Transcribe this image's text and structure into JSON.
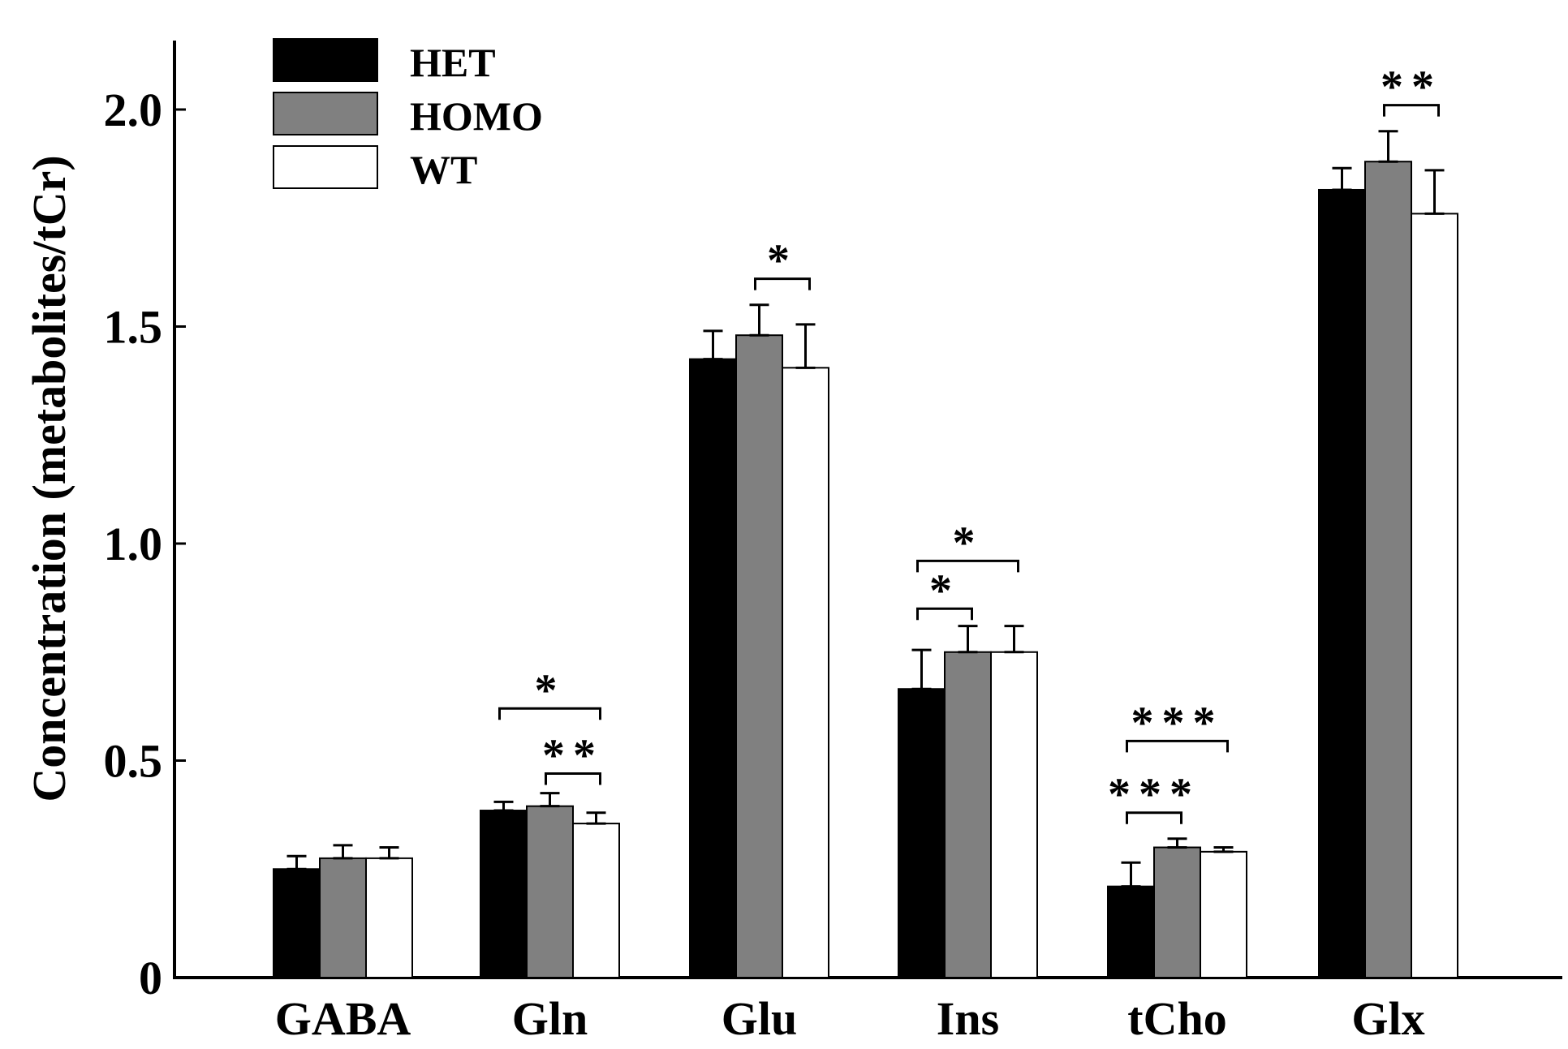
{
  "chart_data": {
    "type": "bar",
    "title": "",
    "xlabel": "",
    "ylabel": "Concentration (metabolites/tCr)",
    "ylim": [
      0,
      2.2
    ],
    "yticks": [
      0,
      0.5,
      1.0,
      1.5,
      2.0
    ],
    "ytick_labels": [
      "0",
      "0.5",
      "1.0",
      "1.5",
      "2.0"
    ],
    "categories": [
      "GABA",
      "Gln",
      "Glu",
      "Ins",
      "tCho",
      "Glx"
    ],
    "legend": {
      "position": "top-left",
      "entries": [
        "HET",
        "HOMO",
        "WT"
      ]
    },
    "series": [
      {
        "name": "HET",
        "color": "#000000",
        "values": [
          0.25,
          0.385,
          1.425,
          0.665,
          0.21,
          1.815
        ],
        "errors": [
          0.03,
          0.02,
          0.065,
          0.09,
          0.055,
          0.05
        ]
      },
      {
        "name": "HOMO",
        "color": "#808080",
        "values": [
          0.275,
          0.395,
          1.48,
          0.75,
          0.3,
          1.88
        ],
        "errors": [
          0.03,
          0.03,
          0.07,
          0.06,
          0.02,
          0.07
        ]
      },
      {
        "name": "WT",
        "color": "#ffffff",
        "values": [
          0.275,
          0.355,
          1.405,
          0.75,
          0.29,
          1.76
        ],
        "errors": [
          0.025,
          0.025,
          0.1,
          0.06,
          0.01,
          0.1
        ]
      }
    ],
    "significance": [
      {
        "category": "Gln",
        "from": "HET",
        "to": "WT",
        "label": "*",
        "level": 0.62
      },
      {
        "category": "Gln",
        "from": "HOMO",
        "to": "WT",
        "label": "**",
        "level": 0.47
      },
      {
        "category": "Glu",
        "from": "HOMO",
        "to": "WT",
        "label": "*",
        "level": 1.61
      },
      {
        "category": "Ins",
        "from": "HET",
        "to": "HOMO",
        "label": "*",
        "level": 0.85
      },
      {
        "category": "Ins",
        "from": "HET",
        "to": "WT",
        "label": "*",
        "level": 0.96
      },
      {
        "category": "tCho",
        "from": "HET",
        "to": "HOMO",
        "label": "***",
        "level": 0.38
      },
      {
        "category": "tCho",
        "from": "HET",
        "to": "WT",
        "label": "***",
        "level": 0.545
      },
      {
        "category": "Glx",
        "from": "HOMO",
        "to": "WT",
        "label": "**",
        "level": 2.01
      }
    ]
  }
}
